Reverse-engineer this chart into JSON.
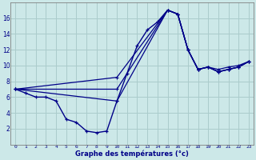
{
  "xlabel": "Graphe des températures (°c)",
  "bg_color": "#cce8e8",
  "grid_color": "#aacccc",
  "line_color": "#000088",
  "ylim": [
    0,
    18
  ],
  "xlim": [
    -0.5,
    23.5
  ],
  "yticks": [
    2,
    4,
    6,
    8,
    10,
    12,
    14,
    16
  ],
  "xticks": [
    0,
    1,
    2,
    3,
    4,
    5,
    6,
    7,
    8,
    9,
    10,
    11,
    12,
    13,
    14,
    15,
    16,
    17,
    18,
    19,
    20,
    21,
    22,
    23
  ],
  "series": [
    {
      "x": [
        0,
        1,
        2,
        3,
        4,
        5,
        6,
        7,
        8,
        9,
        10,
        11,
        12,
        13,
        14,
        15,
        16,
        17,
        18,
        19,
        20,
        21,
        22,
        23
      ],
      "y": [
        7.0,
        6.5,
        6.0,
        6.0,
        5.5,
        3.2,
        2.8,
        1.7,
        1.5,
        1.7,
        5.5,
        9.0,
        12.5,
        14.5,
        15.5,
        17.0,
        16.5,
        12.0,
        9.5,
        9.8,
        9.2,
        9.5,
        9.8,
        10.5
      ]
    },
    {
      "x": [
        0,
        10,
        15,
        16,
        17,
        18,
        19,
        20,
        21,
        22,
        23
      ],
      "y": [
        7.0,
        5.5,
        17.0,
        16.5,
        12.0,
        9.5,
        9.8,
        9.2,
        9.5,
        9.8,
        10.5
      ]
    },
    {
      "x": [
        0,
        10,
        15,
        16,
        17,
        18,
        19,
        20,
        21,
        22,
        23
      ],
      "y": [
        7.0,
        7.0,
        17.0,
        16.5,
        12.0,
        9.5,
        9.8,
        9.2,
        9.5,
        9.8,
        10.5
      ]
    },
    {
      "x": [
        0,
        10,
        15,
        16,
        17,
        18,
        19,
        20,
        21,
        22,
        23
      ],
      "y": [
        7.0,
        8.5,
        17.0,
        16.5,
        12.0,
        9.5,
        9.8,
        9.5,
        9.8,
        10.0,
        10.5
      ]
    }
  ]
}
